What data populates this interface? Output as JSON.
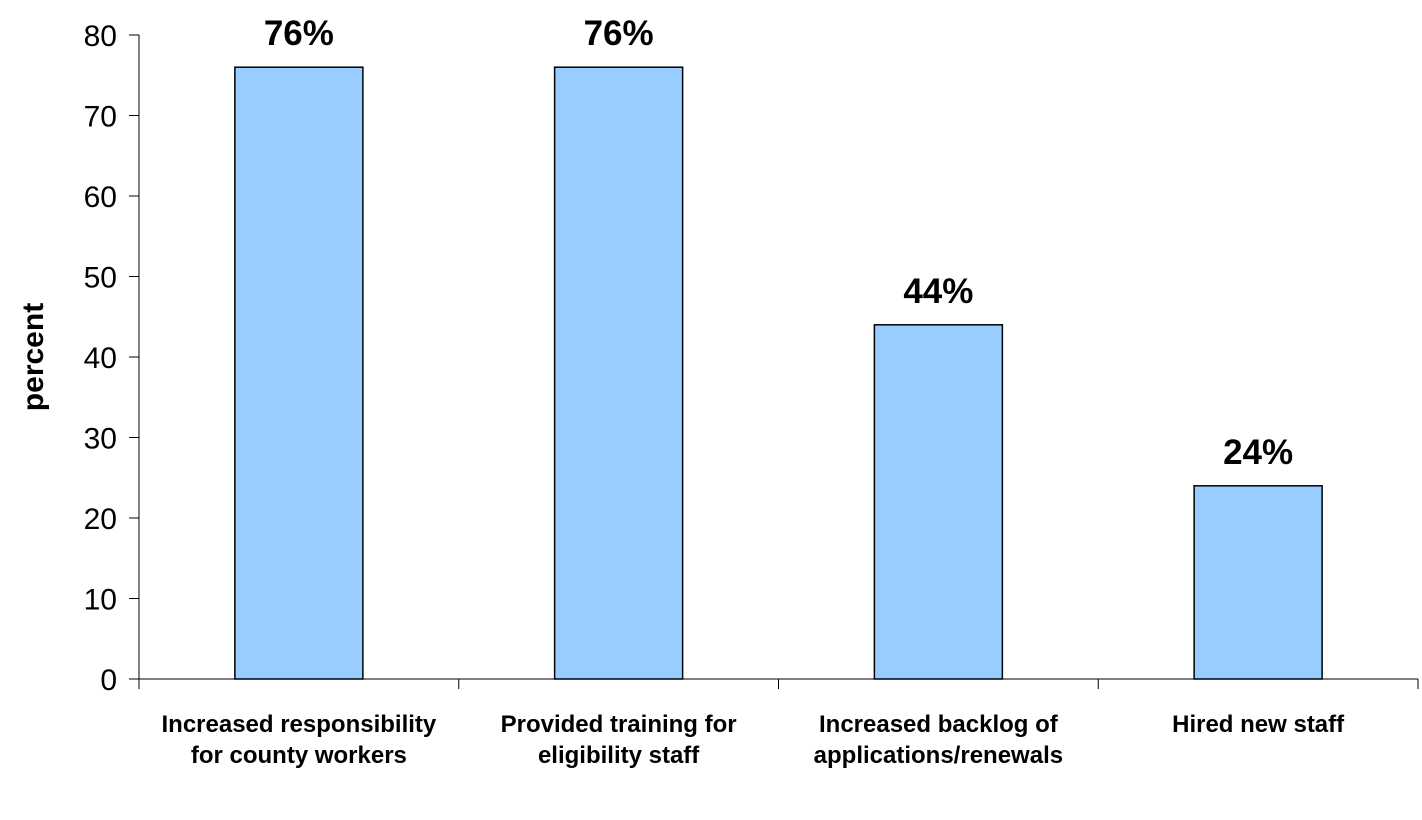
{
  "chart_data": {
    "type": "bar",
    "categories": [
      "Increased responsibility for county workers",
      "Provided training for eligibility staff",
      "Increased backlog of applications/renewals",
      "Hired new staff"
    ],
    "values": [
      76,
      76,
      44,
      24
    ],
    "data_labels": [
      "76%",
      "76%",
      "44%",
      "24%"
    ],
    "title": "",
    "xlabel": "",
    "ylabel": "percent",
    "ylim": [
      0,
      80
    ],
    "yticks": [
      "0",
      "10",
      "20",
      "30",
      "40",
      "50",
      "60",
      "70",
      "80"
    ],
    "grid": false,
    "legend": "none",
    "bar_color": "#99ccff",
    "bar_edge_color": "#000000"
  }
}
